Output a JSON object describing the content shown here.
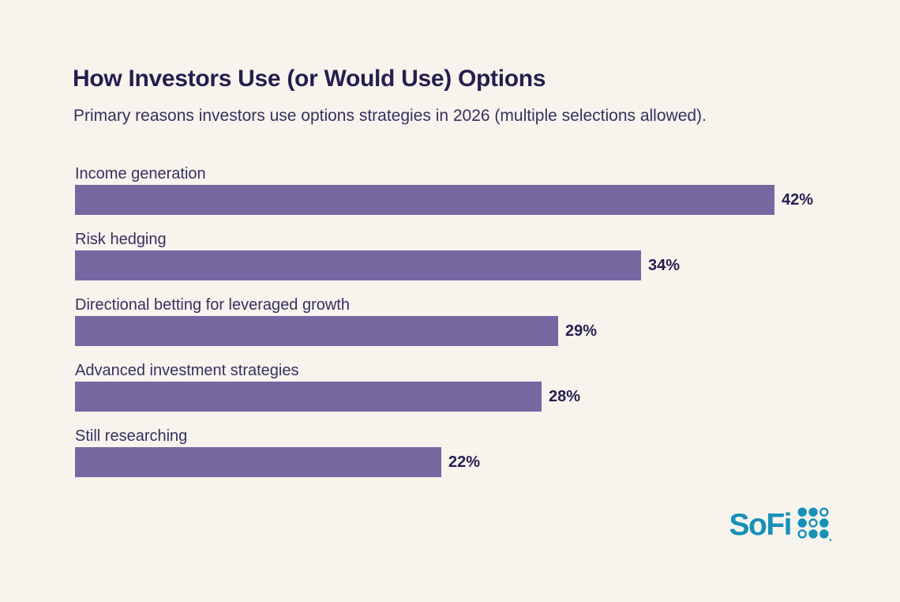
{
  "colors": {
    "background": "#f7f4ee",
    "text": "#37305f",
    "text_dark": "#261e4e"
  },
  "header": {
    "title": "How Investors Use (or Would Use) Options",
    "subtitle": "Primary reasons investors use options strategies in 2026 (multiple selections allowed)."
  },
  "chart_data": {
    "type": "bar",
    "orientation": "horizontal",
    "title": "How Investors Use (or Would Use) Options",
    "subtitle": "Primary reasons investors use options strategies in 2026 (multiple selections allowed).",
    "categories": [
      "Income generation",
      "Risk hedging",
      "Directional betting for leveraged growth",
      "Advanced investment strategies",
      "Still researching"
    ],
    "values": [
      42,
      34,
      29,
      28,
      22
    ],
    "value_labels": [
      "42%",
      "34%",
      "29%",
      "28%",
      "22%"
    ],
    "unit": "percent",
    "xlim": [
      0,
      42
    ],
    "bar_color": "#7568a1",
    "grid": false,
    "legend": false,
    "category_label_position": "above-bar",
    "value_label_position": "right-of-bar"
  },
  "branding": {
    "logo_text": "SoFi",
    "logo_color": "#1791b8",
    "logo_dots_icon": "sofi-dot-grid-icon",
    "dots_pattern": [
      [
        "filled",
        "filled",
        "outline"
      ],
      [
        "filled",
        "outline",
        "filled"
      ],
      [
        "outline",
        "filled",
        "filled"
      ]
    ]
  }
}
